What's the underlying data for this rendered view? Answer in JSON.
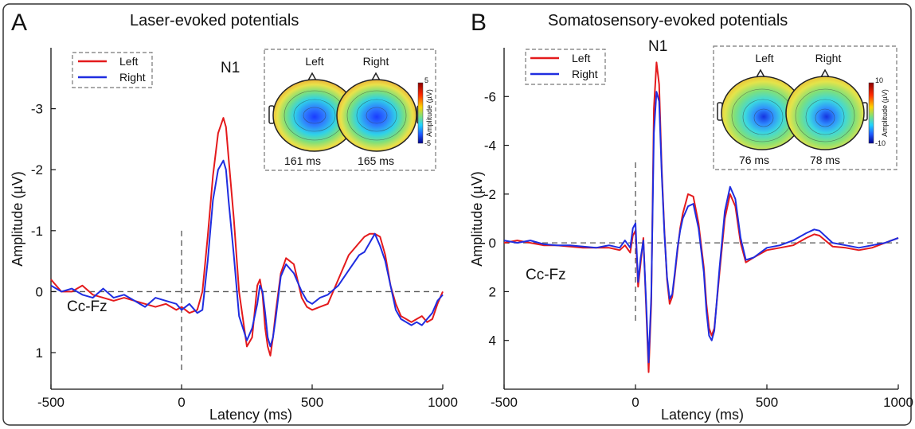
{
  "panels": {
    "a": {
      "letter": "A",
      "title": "Laser-evoked potentials",
      "annotation": "Cc-Fz",
      "peak_label": "N1",
      "legend": [
        "Left",
        "Right"
      ],
      "topo_labels": [
        "Left",
        "Right"
      ],
      "topo_times": [
        "161 ms",
        "165 ms"
      ],
      "cbar_ticks": [
        "5",
        "-5"
      ],
      "cbar_label": "Amplitude (µV)"
    },
    "b": {
      "letter": "B",
      "title": "Somatosensory-evoked potentials",
      "annotation": "Cc-Fz",
      "peak_label": "N1",
      "legend": [
        "Left",
        "Right"
      ],
      "topo_labels": [
        "Left",
        "Right"
      ],
      "topo_times": [
        "76 ms",
        "78 ms"
      ],
      "cbar_ticks": [
        "10",
        "-10"
      ],
      "cbar_label": "Amplitude (µV)"
    }
  },
  "colors": {
    "left": "#e41a1c",
    "right": "#1f2de0"
  },
  "chart_data": [
    {
      "type": "line",
      "title": "Laser-evoked potentials",
      "xlabel": "Latency (ms)",
      "ylabel": "Amplitude (µV)",
      "xlim": [
        -500,
        1000
      ],
      "ylim": [
        -4,
        1.6
      ],
      "y_inverted": true,
      "xticks": [
        -500,
        0,
        500,
        1000
      ],
      "yticks": [
        -3,
        -2,
        -1,
        0,
        1
      ],
      "ytick_labels": [
        "-3",
        "-2",
        "-1",
        "0",
        "1"
      ],
      "series": [
        {
          "name": "Left",
          "color": "#e41a1c",
          "x": [
            -500,
            -460,
            -420,
            -380,
            -340,
            -300,
            -260,
            -220,
            -180,
            -140,
            -100,
            -60,
            -20,
            0,
            30,
            60,
            80,
            100,
            120,
            140,
            160,
            170,
            180,
            200,
            220,
            250,
            270,
            290,
            300,
            310,
            320,
            330,
            340,
            350,
            360,
            380,
            400,
            430,
            460,
            480,
            500,
            530,
            560,
            600,
            640,
            680,
            700,
            720,
            740,
            760,
            780,
            800,
            820,
            840,
            860,
            880,
            900,
            920,
            940,
            960,
            980,
            1000
          ],
          "y": [
            -0.2,
            0,
            0,
            -0.1,
            0.05,
            0.1,
            0.15,
            0.1,
            0.15,
            0.2,
            0.25,
            0.2,
            0.3,
            0.25,
            0.35,
            0.3,
            0,
            -0.9,
            -1.9,
            -2.6,
            -2.85,
            -2.7,
            -2.2,
            -1.2,
            0,
            0.9,
            0.75,
            -0.1,
            -0.2,
            0.05,
            0.6,
            0.9,
            1.05,
            0.75,
            0.35,
            -0.3,
            -0.55,
            -0.45,
            0.1,
            0.25,
            0.3,
            0.25,
            0.2,
            -0.2,
            -0.6,
            -0.8,
            -0.9,
            -0.95,
            -0.95,
            -0.9,
            -0.6,
            -0.1,
            0.2,
            0.4,
            0.45,
            0.5,
            0.45,
            0.4,
            0.5,
            0.45,
            0.2,
            0
          ]
        },
        {
          "name": "Right",
          "color": "#1f2de0",
          "x": [
            -500,
            -460,
            -420,
            -380,
            -340,
            -300,
            -260,
            -220,
            -180,
            -140,
            -100,
            -60,
            -20,
            0,
            30,
            60,
            80,
            100,
            120,
            140,
            160,
            170,
            180,
            200,
            220,
            250,
            270,
            290,
            300,
            310,
            320,
            330,
            340,
            350,
            360,
            380,
            400,
            430,
            460,
            480,
            500,
            530,
            560,
            600,
            640,
            680,
            700,
            720,
            740,
            760,
            780,
            800,
            820,
            840,
            860,
            880,
            900,
            920,
            940,
            960,
            980,
            1000
          ],
          "y": [
            -0.1,
            0,
            -0.05,
            0.05,
            0.1,
            -0.05,
            0.1,
            0.05,
            0.15,
            0.25,
            0.1,
            0.15,
            0.2,
            0.3,
            0.2,
            0.35,
            0.3,
            -0.5,
            -1.5,
            -2.0,
            -2.15,
            -2.0,
            -1.5,
            -0.6,
            0.4,
            0.8,
            0.6,
            0.2,
            -0.1,
            0,
            0.35,
            0.75,
            0.9,
            0.75,
            0.45,
            -0.25,
            -0.45,
            -0.3,
            0,
            0.15,
            0.2,
            0.1,
            0.05,
            -0.1,
            -0.35,
            -0.6,
            -0.65,
            -0.8,
            -0.95,
            -0.75,
            -0.5,
            -0.1,
            0.3,
            0.45,
            0.5,
            0.55,
            0.5,
            0.55,
            0.45,
            0.35,
            0.15,
            0.05
          ]
        }
      ]
    },
    {
      "type": "line",
      "title": "Somatosensory-evoked potentials",
      "xlabel": "Latency (ms)",
      "ylabel": "Amplitude (µV)",
      "xlim": [
        -500,
        1000
      ],
      "ylim": [
        -8,
        6
      ],
      "y_inverted": true,
      "xticks": [
        -500,
        0,
        500,
        1000
      ],
      "yticks": [
        -6,
        -4,
        -2,
        0,
        2,
        4
      ],
      "ytick_labels": [
        "-6",
        "-4",
        "-2",
        "0",
        "2",
        "4"
      ],
      "series": [
        {
          "name": "Left",
          "color": "#e41a1c",
          "x": [
            -500,
            -450,
            -400,
            -350,
            -300,
            -250,
            -200,
            -150,
            -100,
            -60,
            -40,
            -20,
            -10,
            0,
            10,
            20,
            30,
            40,
            50,
            60,
            70,
            80,
            90,
            100,
            110,
            120,
            130,
            140,
            150,
            160,
            170,
            180,
            200,
            220,
            240,
            260,
            270,
            280,
            290,
            300,
            320,
            340,
            360,
            380,
            400,
            420,
            450,
            500,
            550,
            600,
            650,
            680,
            700,
            750,
            800,
            850,
            900,
            950,
            1000
          ],
          "y": [
            0,
            -0.1,
            0,
            0.1,
            0.1,
            0.15,
            0.2,
            0.2,
            0.2,
            0.3,
            0.1,
            0.4,
            -0.3,
            -0.5,
            1.8,
            0.8,
            -0.2,
            2.5,
            5.3,
            2.5,
            -5.5,
            -7.4,
            -6.5,
            -3,
            -0.5,
            1.5,
            2.5,
            2.2,
            1.3,
            0.3,
            -0.6,
            -1.2,
            -2.0,
            -1.9,
            -0.8,
            1.0,
            2.5,
            3.5,
            3.8,
            3.5,
            1.2,
            -1.0,
            -2.0,
            -1.5,
            0,
            0.8,
            0.6,
            0.3,
            0.2,
            0.1,
            -0.2,
            -0.35,
            -0.3,
            0.15,
            0.2,
            0.3,
            0.2,
            0,
            -0.2
          ]
        },
        {
          "name": "Right",
          "color": "#1f2de0",
          "x": [
            -500,
            -450,
            -400,
            -350,
            -300,
            -250,
            -200,
            -150,
            -100,
            -60,
            -40,
            -20,
            -10,
            0,
            10,
            20,
            30,
            40,
            50,
            60,
            70,
            80,
            90,
            100,
            110,
            120,
            130,
            140,
            150,
            160,
            170,
            180,
            200,
            220,
            240,
            260,
            270,
            280,
            290,
            300,
            320,
            340,
            360,
            380,
            400,
            420,
            450,
            500,
            550,
            600,
            650,
            680,
            700,
            750,
            800,
            850,
            900,
            950,
            1000
          ],
          "y": [
            -0.1,
            0,
            -0.1,
            0.05,
            0.1,
            0.1,
            0.15,
            0.2,
            0.1,
            0.2,
            -0.1,
            0.2,
            -0.6,
            -0.8,
            1.6,
            0.6,
            -0.1,
            2.3,
            4.9,
            2.2,
            -4.5,
            -6.2,
            -5.8,
            -2.8,
            -0.4,
            1.4,
            2.3,
            2.1,
            1.2,
            0.2,
            -0.5,
            -1.0,
            -1.5,
            -1.6,
            -0.6,
            1.2,
            2.8,
            3.8,
            4.0,
            3.6,
            1.0,
            -1.3,
            -2.3,
            -1.8,
            -0.2,
            0.7,
            0.6,
            0.2,
            0.1,
            -0.1,
            -0.4,
            -0.55,
            -0.5,
            0,
            0.1,
            0.2,
            0.1,
            0,
            -0.2
          ]
        }
      ]
    }
  ]
}
